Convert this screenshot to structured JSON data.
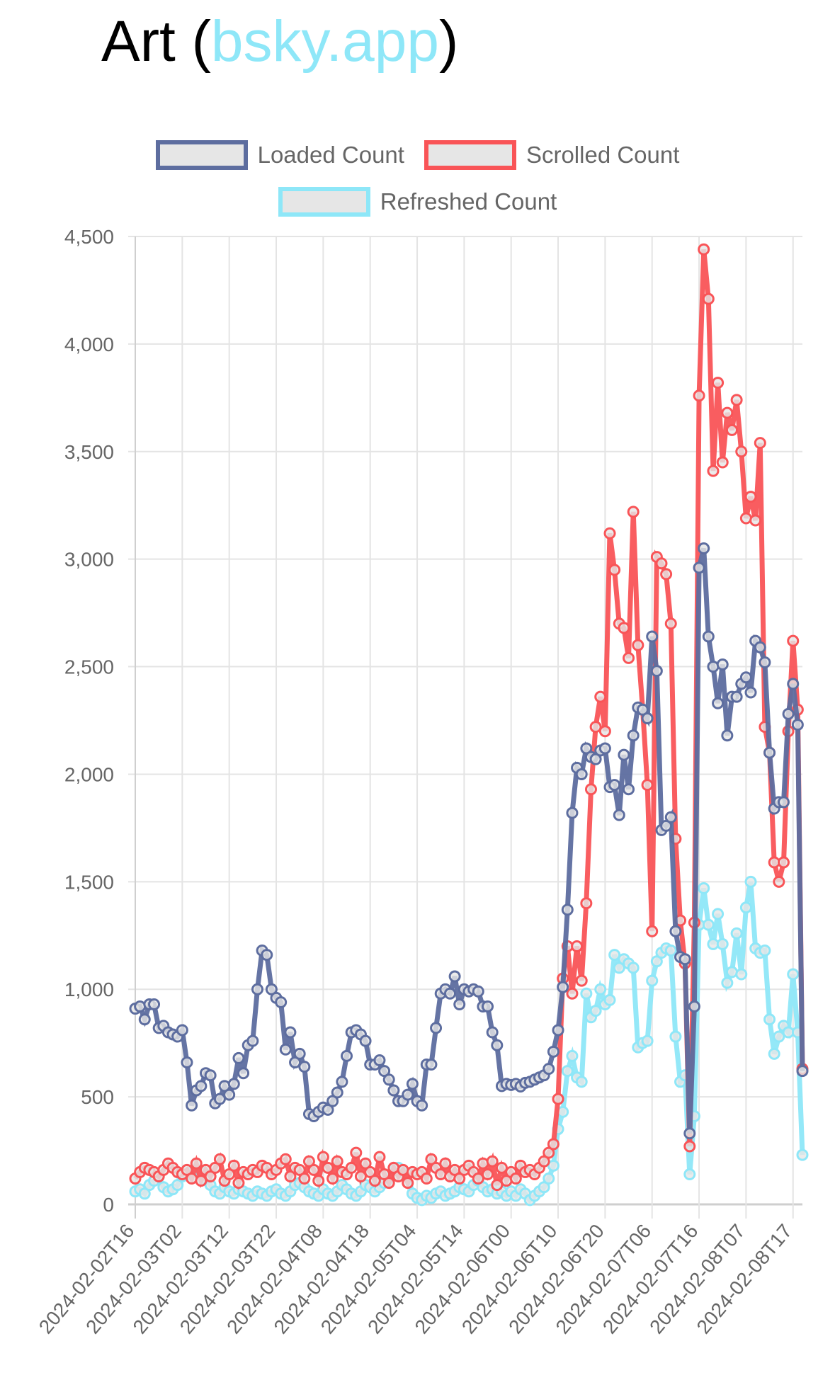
{
  "title": {
    "prefix": "Art (",
    "site": "bsky.app",
    "suffix": ")"
  },
  "chart_data": {
    "type": "line",
    "title": "Art (bsky.app)",
    "xlabel": "",
    "ylabel": "",
    "ylim": [
      0,
      4500
    ],
    "y_ticks": [
      0,
      500,
      1000,
      1500,
      2000,
      2500,
      3000,
      3500,
      4000,
      4500
    ],
    "y_tick_labels": [
      "0",
      "500",
      "1,000",
      "1,500",
      "2,000",
      "2,500",
      "3,000",
      "3,500",
      "4,000",
      "4,500"
    ],
    "x_tick_every": 10,
    "x_tick_labels": [
      "2024-02-02T16",
      "2024-02-03T02",
      "2024-02-03T12",
      "2024-02-03T22",
      "2024-02-04T08",
      "2024-02-04T18",
      "2024-02-05T04",
      "2024-02-05T14",
      "2024-02-06T00",
      "2024-02-06T10",
      "2024-02-06T20",
      "2024-02-07T06",
      "2024-02-07T16",
      "2024-02-08T07",
      "2024-02-08T17"
    ],
    "grid": true,
    "legend_position": "top",
    "series": [
      {
        "name": "Loaded Count",
        "color": "#5d6d9f",
        "values": [
          910,
          920,
          860,
          930,
          930,
          820,
          830,
          800,
          790,
          780,
          810,
          660,
          460,
          530,
          550,
          610,
          600,
          470,
          490,
          550,
          510,
          560,
          680,
          610,
          740,
          760,
          1000,
          1180,
          1160,
          1000,
          960,
          940,
          720,
          800,
          660,
          700,
          640,
          420,
          410,
          430,
          450,
          440,
          480,
          520,
          570,
          690,
          800,
          810,
          790,
          760,
          650,
          650,
          670,
          620,
          580,
          530,
          480,
          480,
          510,
          560,
          480,
          460,
          650,
          650,
          820,
          980,
          1000,
          980,
          1060,
          930,
          1000,
          990,
          1000,
          990,
          920,
          920,
          800,
          740,
          550,
          560,
          555,
          560,
          548,
          565,
          570,
          580,
          590,
          600,
          630,
          710,
          810,
          1010,
          1370,
          1820,
          2030,
          2000,
          2120,
          2080,
          2070,
          2110,
          2120,
          1940,
          1950,
          1810,
          2090,
          1930,
          2180,
          2310,
          2300,
          2260,
          2640,
          2480,
          1740,
          1760,
          1800,
          1270,
          1150,
          1140,
          330,
          920,
          2960,
          3050,
          2640,
          2500,
          2330,
          2510,
          2180,
          2360,
          2360,
          2420,
          2450,
          2380,
          2620,
          2590,
          2520,
          2100,
          1840,
          1870,
          1870,
          2280,
          2420,
          2230,
          620
        ]
      },
      {
        "name": "Scrolled Count",
        "color": "#f95457",
        "values": [
          120,
          150,
          170,
          160,
          150,
          130,
          160,
          190,
          170,
          150,
          140,
          160,
          120,
          190,
          110,
          160,
          130,
          170,
          210,
          110,
          140,
          180,
          100,
          150,
          140,
          160,
          150,
          180,
          170,
          140,
          160,
          190,
          210,
          130,
          170,
          160,
          120,
          200,
          160,
          110,
          220,
          170,
          120,
          200,
          150,
          140,
          170,
          240,
          130,
          190,
          150,
          110,
          220,
          140,
          100,
          170,
          130,
          160,
          100,
          150,
          140,
          150,
          120,
          210,
          170,
          140,
          190,
          130,
          160,
          120,
          160,
          180,
          150,
          120,
          190,
          140,
          200,
          90,
          170,
          110,
          150,
          120,
          180,
          150,
          160,
          140,
          170,
          200,
          240,
          280,
          490,
          1050,
          1200,
          980,
          1200,
          1040,
          1400,
          1930,
          2220,
          2360,
          2200,
          3120,
          2950,
          2700,
          2680,
          2540,
          3220,
          2600,
          2300,
          1950,
          1270,
          3010,
          2980,
          2930,
          2700,
          1700,
          1320,
          1120,
          270,
          1310,
          3760,
          4440,
          4210,
          3410,
          3820,
          3450,
          3680,
          3600,
          3740,
          3500,
          3190,
          3290,
          3180,
          3540,
          2220,
          2100,
          1590,
          1500,
          1590,
          2200,
          2620,
          2300,
          630
        ]
      },
      {
        "name": "Refreshed Count",
        "color": "#8ee7f8",
        "values": [
          60,
          70,
          50,
          90,
          110,
          130,
          80,
          60,
          70,
          90,
          130,
          140,
          150,
          160,
          150,
          120,
          90,
          60,
          50,
          80,
          60,
          50,
          70,
          60,
          50,
          40,
          60,
          50,
          40,
          60,
          70,
          50,
          40,
          60,
          90,
          100,
          80,
          60,
          50,
          40,
          70,
          50,
          40,
          60,
          90,
          70,
          50,
          40,
          60,
          90,
          80,
          60,
          80,
          100,
          120,
          160,
          170,
          150,
          140,
          50,
          30,
          20,
          40,
          30,
          50,
          60,
          40,
          50,
          60,
          80,
          70,
          60,
          90,
          110,
          80,
          60,
          70,
          50,
          60,
          40,
          60,
          40,
          70,
          50,
          20,
          40,
          60,
          80,
          120,
          180,
          350,
          430,
          620,
          690,
          590,
          570,
          980,
          870,
          900,
          1000,
          930,
          950,
          1160,
          1100,
          1140,
          1120,
          1100,
          730,
          750,
          760,
          1040,
          1130,
          1170,
          1190,
          1180,
          780,
          570,
          600,
          140,
          410,
          1300,
          1470,
          1300,
          1210,
          1350,
          1210,
          1030,
          1080,
          1260,
          1070,
          1380,
          1500,
          1190,
          1170,
          1180,
          860,
          700,
          780,
          830,
          800,
          1070,
          800,
          230
        ]
      }
    ]
  }
}
